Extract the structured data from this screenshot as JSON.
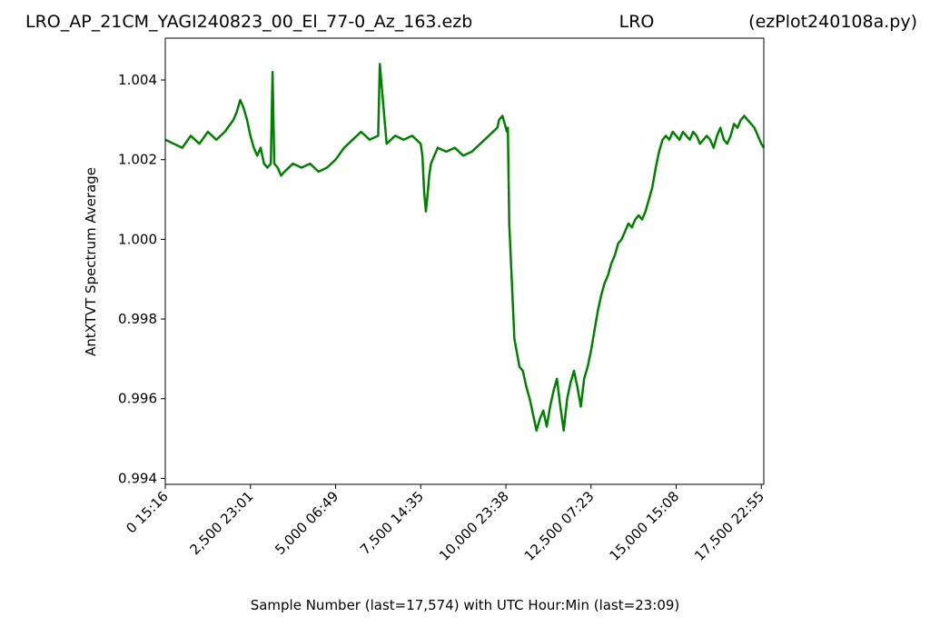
{
  "chart_data": {
    "type": "line",
    "title_parts": [
      "LRO_AP_21CM_YAGI240823_00_El_77-0_Az_163.ezb",
      "LRO",
      "(ezPlot240108a.py)"
    ],
    "xlabel": "Sample Number (last=17,574) with UTC Hour:Min (last=23:09)",
    "ylabel": "AntXTVT Spectrum Average",
    "xlim": [
      0,
      17574
    ],
    "ylim": [
      0.99385,
      1.00505
    ],
    "grid": false,
    "x_ticks": [
      0,
      2500,
      5000,
      7500,
      10000,
      12500,
      15000,
      17500
    ],
    "x_tick_labels": [
      "0  15:16",
      "2,500  23:01",
      "5,000  06:49",
      "7,500  14:35",
      "10,000  23:38",
      "12,500  07:23",
      "15,000  15:08",
      "17,500  22:55"
    ],
    "y_ticks": [
      0.994,
      0.996,
      0.998,
      1.0,
      1.002,
      1.004
    ],
    "y_tick_labels": [
      "0.994",
      "0.996",
      "0.998",
      "1.000",
      "1.002",
      "1.004"
    ],
    "line_color": "#008000",
    "series": [
      {
        "x": [
          0,
          250,
          500,
          750,
          1000,
          1250,
          1500,
          1750,
          2000,
          2100,
          2200,
          2300,
          2400,
          2500,
          2600,
          2700,
          2800,
          2900,
          3000,
          3100,
          3150,
          3200,
          3300,
          3400,
          3500,
          3750,
          4000,
          4250,
          4500,
          4750,
          5000,
          5250,
          5500,
          5750,
          6000,
          6250,
          6300,
          6500,
          6750,
          7000,
          7250,
          7500,
          7550,
          7600,
          7650,
          7700,
          7750,
          7800,
          7900,
          8000,
          8250,
          8500,
          8750,
          9000,
          9250,
          9500,
          9750,
          9800,
          9900,
          10000,
          10030,
          10060,
          10100,
          10250,
          10400,
          10500,
          10600,
          10700,
          10800,
          10900,
          11000,
          11100,
          11200,
          11300,
          11400,
          11500,
          11600,
          11700,
          11800,
          11900,
          12000,
          12100,
          12200,
          12300,
          12400,
          12500,
          12600,
          12700,
          12800,
          12900,
          13000,
          13100,
          13200,
          13300,
          13400,
          13500,
          13600,
          13700,
          13800,
          13900,
          14000,
          14100,
          14200,
          14300,
          14400,
          14500,
          14600,
          14700,
          14800,
          14900,
          15000,
          15100,
          15200,
          15300,
          15400,
          15500,
          15600,
          15700,
          15800,
          15900,
          16000,
          16100,
          16200,
          16300,
          16400,
          16500,
          16600,
          16700,
          16800,
          16900,
          17000,
          17100,
          17200,
          17300,
          17400,
          17500,
          17574
        ],
        "y": [
          1.0025,
          1.0024,
          1.0023,
          1.0026,
          1.0024,
          1.0027,
          1.0025,
          1.0027,
          1.003,
          1.0032,
          1.0035,
          1.0033,
          1.003,
          1.0026,
          1.0023,
          1.0021,
          1.0023,
          1.0019,
          1.0018,
          1.0019,
          1.0042,
          1.0019,
          1.0018,
          1.0016,
          1.0017,
          1.0019,
          1.0018,
          1.0019,
          1.0017,
          1.0018,
          1.002,
          1.0023,
          1.0025,
          1.0027,
          1.0025,
          1.0026,
          1.0044,
          1.0024,
          1.0026,
          1.0025,
          1.0026,
          1.0024,
          1.0021,
          1.0012,
          1.0007,
          1.0011,
          1.0016,
          1.0019,
          1.0021,
          1.0023,
          1.0022,
          1.0023,
          1.0021,
          1.0022,
          1.0024,
          1.0026,
          1.0028,
          1.003,
          1.0031,
          1.0028,
          1.0027,
          1.0028,
          1.0004,
          0.9975,
          0.9968,
          0.9967,
          0.9963,
          0.996,
          0.9956,
          0.9952,
          0.9955,
          0.9957,
          0.9953,
          0.9958,
          0.9962,
          0.9965,
          0.9958,
          0.9952,
          0.996,
          0.9964,
          0.9967,
          0.9963,
          0.9958,
          0.9965,
          0.9968,
          0.9972,
          0.9977,
          0.9982,
          0.9986,
          0.9989,
          0.9991,
          0.9994,
          0.9996,
          0.9999,
          1.0,
          1.0002,
          1.0004,
          1.0003,
          1.0005,
          1.0006,
          1.0005,
          1.0007,
          1.001,
          1.0013,
          1.0018,
          1.0022,
          1.0025,
          1.0026,
          1.0025,
          1.0027,
          1.0026,
          1.0025,
          1.0027,
          1.0026,
          1.0025,
          1.0027,
          1.0026,
          1.0024,
          1.0025,
          1.0026,
          1.0025,
          1.0023,
          1.0026,
          1.0028,
          1.0025,
          1.0024,
          1.0026,
          1.0029,
          1.0028,
          1.003,
          1.0031,
          1.003,
          1.0029,
          1.0028,
          1.0026,
          1.0024,
          1.0023
        ]
      }
    ]
  }
}
